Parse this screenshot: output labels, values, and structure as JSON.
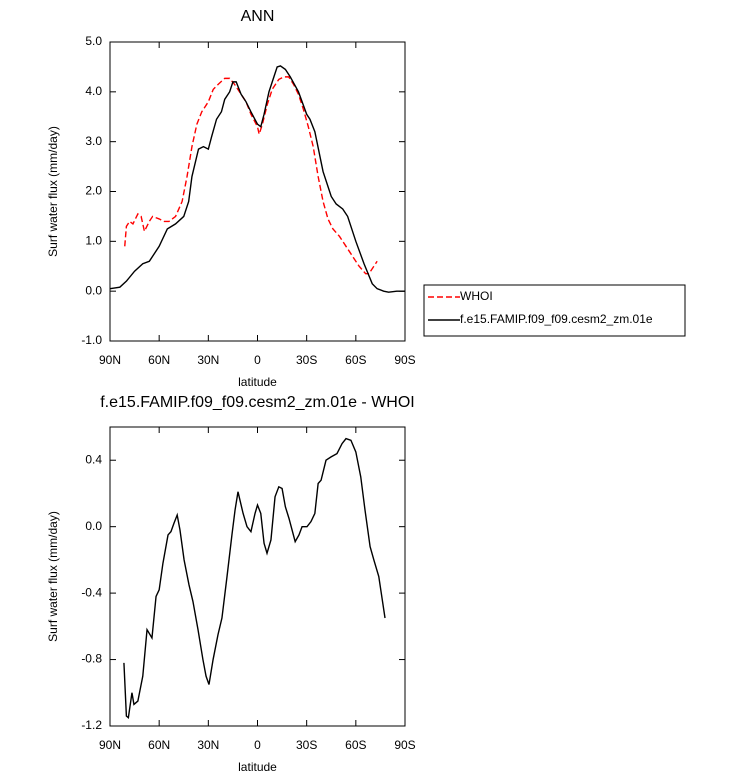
{
  "chart_data": [
    {
      "type": "line",
      "title": "ANN",
      "xlabel": "latitude",
      "ylabel": "Surf water flux (mm/day)",
      "xlim": [
        90,
        -90
      ],
      "xticks": [
        {
          "value": 90,
          "label": "90N"
        },
        {
          "value": 60,
          "label": "60N"
        },
        {
          "value": 30,
          "label": "30N"
        },
        0,
        {
          "value": -30,
          "label": "30S"
        },
        {
          "value": -60,
          "label": "60S"
        },
        {
          "value": -90,
          "label": "90S"
        }
      ],
      "ylim": [
        -1,
        5
      ],
      "yticks": [
        {
          "value": 5,
          "label": "5.0"
        },
        {
          "value": 4,
          "label": "4.0"
        },
        {
          "value": 3,
          "label": "3.0"
        },
        {
          "value": 2,
          "label": "2.0"
        },
        {
          "value": 1,
          "label": "1.0"
        },
        {
          "value": 0,
          "label": "0.0"
        },
        {
          "value": -1,
          "label": "-1.0"
        }
      ],
      "legend": "outside-right",
      "series": [
        {
          "name": "WHOI",
          "color": "#ff0000",
          "dash": true,
          "x": [
            81,
            80,
            78,
            76,
            73,
            71,
            69,
            66,
            64,
            60,
            57,
            54,
            50,
            46,
            43,
            40,
            37,
            34,
            30,
            27,
            24,
            20,
            17,
            14,
            10,
            7,
            4,
            0,
            -1,
            -3,
            -6,
            -9,
            -13,
            -16,
            -19,
            -22,
            -25,
            -28,
            -31,
            -34,
            -37,
            -40,
            -43,
            -46,
            -50,
            -54,
            -58,
            -62,
            -66,
            -68,
            -71,
            -73
          ],
          "values": [
            0.9,
            1.3,
            1.4,
            1.35,
            1.55,
            1.5,
            1.2,
            1.4,
            1.5,
            1.45,
            1.4,
            1.4,
            1.5,
            1.8,
            2.3,
            2.9,
            3.35,
            3.6,
            3.8,
            4.05,
            4.15,
            4.27,
            4.27,
            4.15,
            3.95,
            3.8,
            3.55,
            3.3,
            3.15,
            3.35,
            3.75,
            4.05,
            4.25,
            4.3,
            4.3,
            4.15,
            3.95,
            3.65,
            3.3,
            2.9,
            2.3,
            1.8,
            1.45,
            1.25,
            1.1,
            0.9,
            0.7,
            0.5,
            0.35,
            0.35,
            0.5,
            0.6
          ]
        },
        {
          "name": "f.e15.FAMIP.f09_f09.cesm2_zm.01e",
          "color": "#000000",
          "dash": false,
          "x": [
            90,
            84,
            80,
            75,
            70,
            66,
            60,
            55,
            50,
            45,
            42,
            40,
            36,
            33,
            30,
            28,
            25,
            22,
            20,
            17,
            15,
            13,
            10,
            7,
            4,
            0,
            -2,
            -4,
            -7,
            -10,
            -12,
            -14,
            -17,
            -20,
            -25,
            -30,
            -32,
            -35,
            -40,
            -43,
            -45,
            -48,
            -52,
            -55,
            -60,
            -65,
            -70,
            -73,
            -77,
            -80,
            -85,
            -90
          ],
          "values": [
            0.05,
            0.08,
            0.2,
            0.4,
            0.55,
            0.6,
            0.9,
            1.25,
            1.35,
            1.5,
            1.8,
            2.3,
            2.85,
            2.9,
            2.85,
            3.1,
            3.45,
            3.6,
            3.85,
            4.0,
            4.2,
            4.2,
            3.95,
            3.8,
            3.6,
            3.35,
            3.3,
            3.55,
            4.0,
            4.3,
            4.5,
            4.52,
            4.45,
            4.3,
            4.0,
            3.55,
            3.45,
            3.2,
            2.4,
            2.1,
            1.9,
            1.75,
            1.65,
            1.5,
            1.0,
            0.55,
            0.15,
            0.05,
            0.0,
            -0.02,
            0.0,
            0.0
          ]
        }
      ]
    },
    {
      "type": "line",
      "title": "f.e15.FAMIP.f09_f09.cesm2_zm.01e - WHOI",
      "xlabel": "latitude",
      "ylabel": "Surf water flux (mm/day)",
      "xlim": [
        90,
        -90
      ],
      "xticks": [
        {
          "value": 90,
          "label": "90N"
        },
        {
          "value": 60,
          "label": "60N"
        },
        {
          "value": 30,
          "label": "30N"
        },
        0,
        {
          "value": -30,
          "label": "30S"
        },
        {
          "value": -60,
          "label": "60S"
        },
        {
          "value": -90,
          "label": "90S"
        }
      ],
      "ylim": [
        -1.2,
        0.6
      ],
      "yticks": [
        0.4,
        {
          "value": 0,
          "label": "0.0"
        },
        -0.4,
        -0.8,
        -1.2
      ],
      "color": "#000000",
      "x": [
        81.5,
        80,
        78.8,
        76.6,
        75.4,
        73,
        70,
        67.4,
        64.4,
        61.9,
        60,
        57.7,
        54.6,
        52.8,
        51,
        49,
        47.3,
        44.8,
        41.8,
        39.4,
        36.3,
        33.3,
        31.4,
        29.6,
        27.1,
        24.1,
        21.7,
        18.6,
        15.6,
        13.7,
        11.9,
        8.8,
        6.4,
        4,
        1.5,
        0,
        -2,
        -4,
        -5.8,
        -8.2,
        -10.7,
        -13,
        -15,
        -17,
        -19.2,
        -23,
        -25.3,
        -27.2,
        -30.2,
        -32.6,
        -35,
        -37,
        -38.8,
        -41.8,
        -44.9,
        -48.5,
        -51.6,
        -54,
        -57,
        -60,
        -63,
        -65.6,
        -68.7,
        -71,
        -74,
        -77.8
      ],
      "values": [
        -0.82,
        -1.14,
        -1.15,
        -1.0,
        -1.07,
        -1.05,
        -0.9,
        -0.62,
        -0.67,
        -0.42,
        -0.38,
        -0.22,
        -0.05,
        -0.03,
        0.02,
        0.07,
        -0.02,
        -0.2,
        -0.35,
        -0.45,
        -0.62,
        -0.8,
        -0.9,
        -0.95,
        -0.8,
        -0.65,
        -0.55,
        -0.3,
        -0.05,
        0.1,
        0.21,
        0.08,
        0.0,
        -0.03,
        0.08,
        0.13,
        0.08,
        -0.1,
        -0.16,
        -0.08,
        0.18,
        0.24,
        0.23,
        0.12,
        0.05,
        -0.09,
        -0.05,
        0.0,
        0.0,
        0.03,
        0.08,
        0.26,
        0.28,
        0.4,
        0.42,
        0.44,
        0.5,
        0.53,
        0.52,
        0.45,
        0.3,
        0.1,
        -0.12,
        -0.2,
        -0.3,
        -0.55
      ]
    }
  ]
}
